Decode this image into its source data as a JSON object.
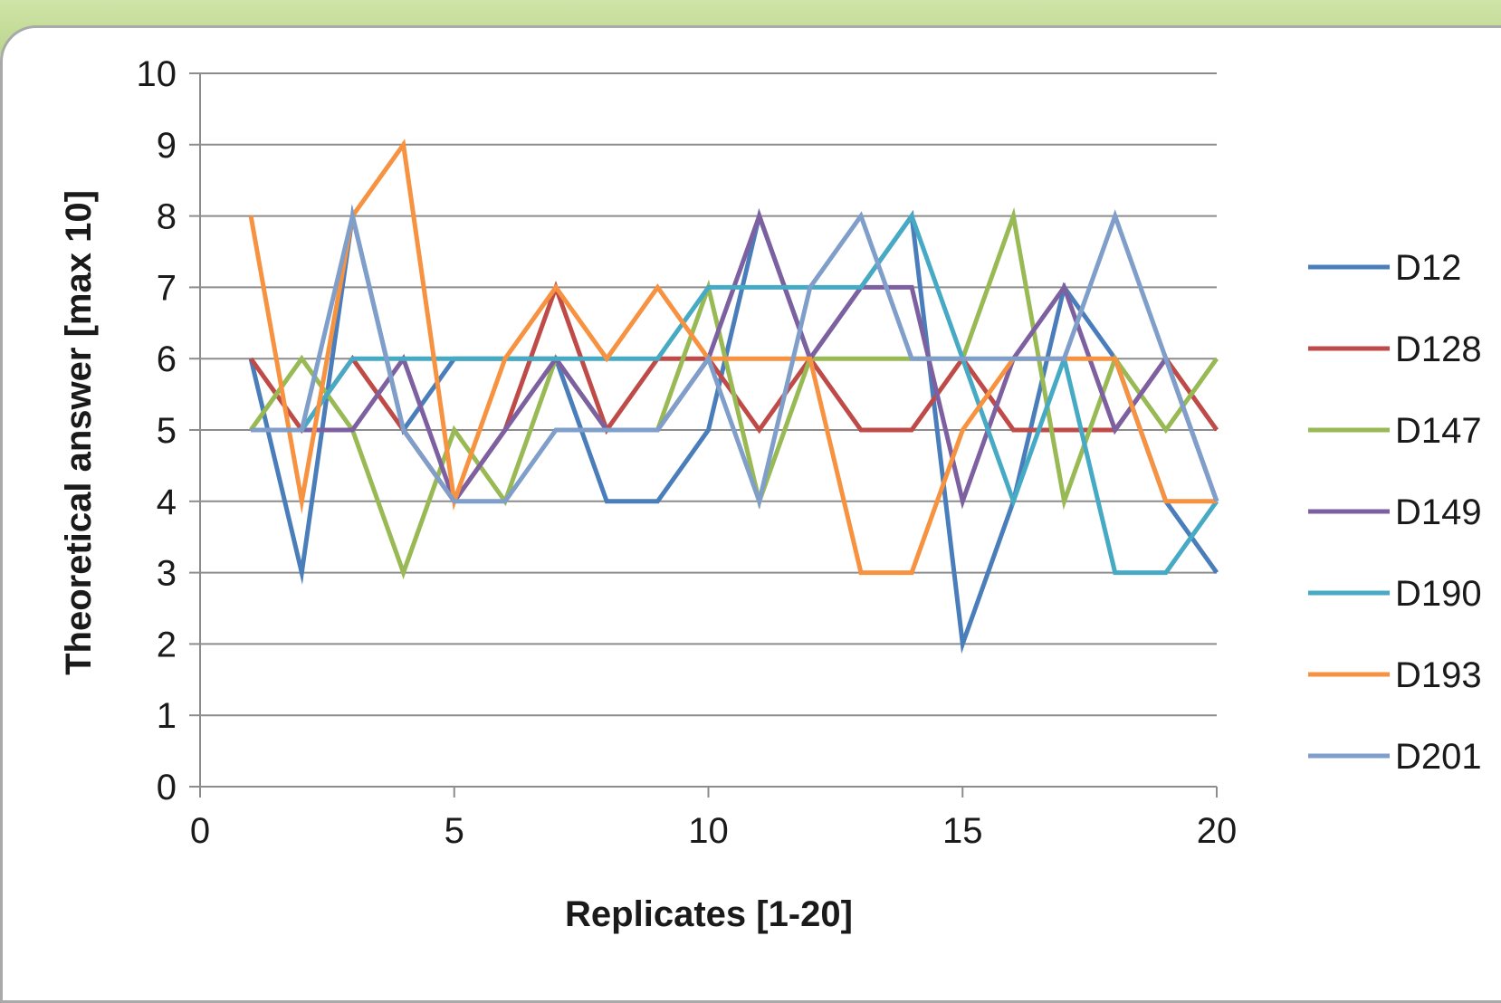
{
  "chart_data": {
    "type": "line",
    "xlabel": "Replicates [1-20]",
    "ylabel": "Theoretical answer [max 10]",
    "xlim": [
      0,
      20
    ],
    "ylim": [
      0,
      10
    ],
    "xticks": [
      "0",
      "5",
      "10",
      "15",
      "20"
    ],
    "yticks": [
      "0",
      "1",
      "2",
      "3",
      "4",
      "5",
      "6",
      "7",
      "8",
      "9",
      "10"
    ],
    "grid": "horizontal",
    "legend_position": "right",
    "x": [
      1,
      2,
      3,
      4,
      5,
      6,
      7,
      8,
      9,
      10,
      11,
      12,
      13,
      14,
      15,
      16,
      17,
      18,
      19,
      20
    ],
    "series": [
      {
        "name": "D12",
        "color": "#4a7ebb",
        "values": [
          6,
          3,
          8,
          5,
          6,
          6,
          6,
          4,
          4,
          5,
          8,
          6,
          7,
          8,
          2,
          4,
          7,
          6,
          4,
          3
        ]
      },
      {
        "name": "D128",
        "color": "#be4b48",
        "values": [
          6,
          5,
          6,
          5,
          4,
          5,
          7,
          5,
          6,
          6,
          5,
          6,
          5,
          5,
          6,
          5,
          5,
          5,
          6,
          5
        ]
      },
      {
        "name": "D147",
        "color": "#98b954",
        "values": [
          5,
          6,
          5,
          3,
          5,
          4,
          6,
          5,
          5,
          7,
          4,
          6,
          6,
          6,
          6,
          8,
          4,
          6,
          5,
          6
        ]
      },
      {
        "name": "D149",
        "color": "#7d60a0",
        "values": [
          5,
          5,
          5,
          6,
          4,
          5,
          6,
          5,
          5,
          6,
          8,
          6,
          7,
          7,
          4,
          6,
          7,
          5,
          6,
          4
        ]
      },
      {
        "name": "D190",
        "color": "#46aac5",
        "values": [
          5,
          5,
          6,
          6,
          6,
          6,
          6,
          6,
          6,
          7,
          7,
          7,
          7,
          8,
          6,
          4,
          6,
          3,
          3,
          4
        ]
      },
      {
        "name": "D193",
        "color": "#f69240",
        "values": [
          8,
          4,
          8,
          9,
          4,
          6,
          7,
          6,
          7,
          6,
          6,
          6,
          3,
          3,
          5,
          6,
          6,
          6,
          4,
          4
        ]
      },
      {
        "name": "D201",
        "color": "#7f9ec9",
        "values": [
          5,
          5,
          8,
          5,
          4,
          4,
          5,
          5,
          5,
          6,
          4,
          7,
          8,
          6,
          6,
          6,
          6,
          8,
          6,
          4
        ]
      }
    ]
  }
}
